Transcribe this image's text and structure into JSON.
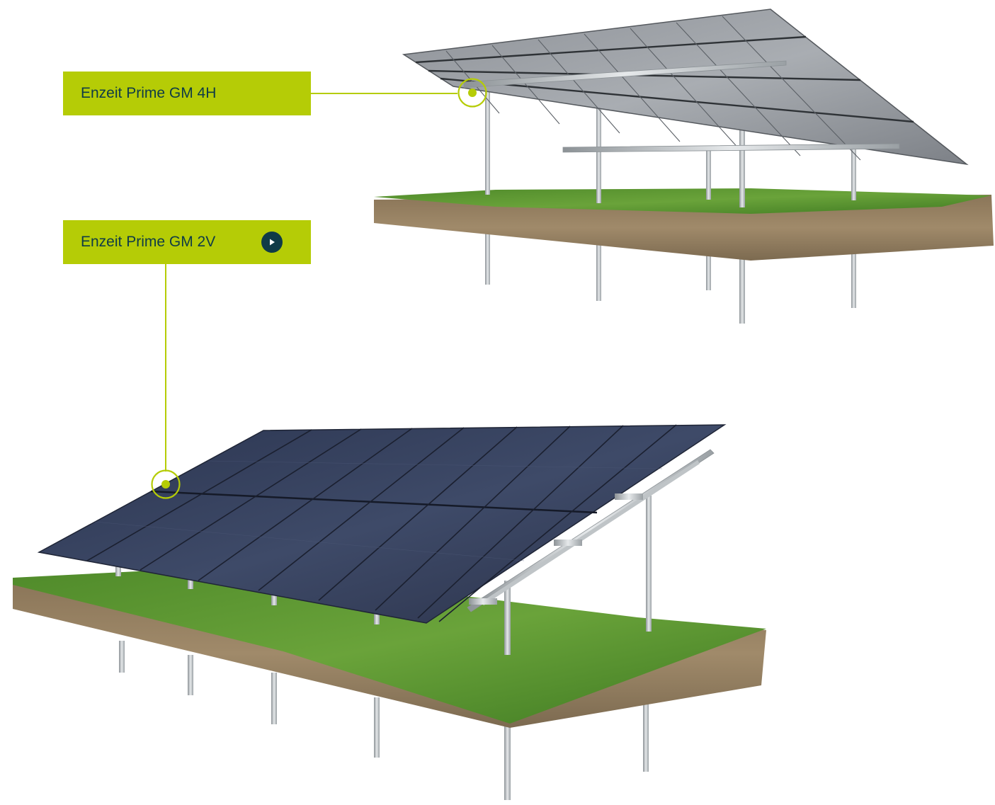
{
  "colors": {
    "accent": "#b5cc06",
    "label_text": "#0f3b47",
    "play_button": "#0f3b47"
  },
  "products": [
    {
      "label": "Enzeit Prime GM 4H",
      "has_play_button": false
    },
    {
      "label": "Enzeit Prime GM 2V",
      "has_play_button": true
    }
  ],
  "icons": {
    "play": "play-icon",
    "hotspot": "hotspot-marker-icon"
  }
}
